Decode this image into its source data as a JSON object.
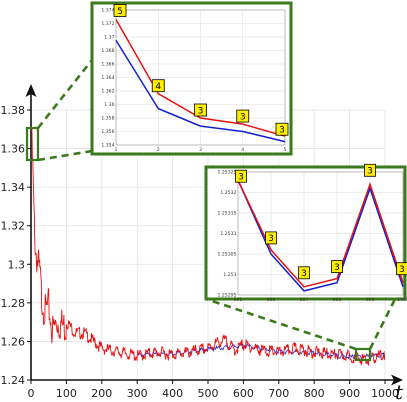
{
  "colors": {
    "frame": "#3b7a1a",
    "series_red": "#e41414",
    "series_blue": "#1020d0",
    "badge_fill": "#ffee00"
  },
  "chart_data": [
    {
      "type": "line",
      "x_axis_label": "t",
      "xlim": [
        0,
        1000
      ],
      "ylim": [
        1.24,
        1.38
      ],
      "xticks": [
        0,
        100,
        200,
        300,
        400,
        500,
        600,
        700,
        800,
        900,
        1000
      ],
      "xtick_labels": [
        "0",
        "100",
        "200",
        "300",
        "400",
        "500",
        "600",
        "700",
        "800",
        "900",
        "1000"
      ],
      "yticks": [
        1.24,
        1.26,
        1.28,
        1.3,
        1.32,
        1.34,
        1.36,
        1.38
      ],
      "ytick_labels": [
        "1.24",
        "1.26",
        "1.28",
        "1.3",
        "1.32",
        "1.34",
        "1.36",
        "1.38"
      ],
      "grid": true,
      "series": [
        {
          "color": "red",
          "x": [
            1,
            5,
            10,
            15,
            20,
            25,
            30,
            40,
            50,
            60,
            75,
            100,
            125,
            150,
            175,
            200,
            250,
            300,
            350,
            400,
            450,
            500,
            525,
            550,
            575,
            600,
            650,
            700,
            750,
            800,
            850,
            900,
            950,
            970,
            1000
          ],
          "y": [
            1.374,
            1.354,
            1.32,
            1.31,
            1.305,
            1.3,
            1.288,
            1.28,
            1.283,
            1.27,
            1.275,
            1.272,
            1.266,
            1.266,
            1.262,
            1.258,
            1.256,
            1.254,
            1.256,
            1.255,
            1.256,
            1.258,
            1.261,
            1.262,
            1.257,
            1.26,
            1.257,
            1.256,
            1.258,
            1.256,
            1.255,
            1.254,
            1.252,
            1.253,
            1.255
          ]
        },
        {
          "color": "blue",
          "x": [
            300,
            400,
            500,
            600,
            700,
            800,
            900,
            1000
          ],
          "y": [
            1.2535,
            1.2545,
            1.2565,
            1.2585,
            1.2555,
            1.2545,
            1.2525,
            1.2535
          ]
        }
      ],
      "zoom_regions": [
        {
          "x": [
            1,
            5
          ],
          "y": [
            1.354,
            1.374
          ]
        },
        {
          "x": [
            995,
            1000
          ],
          "y": [
            1.25295,
            1.25325
          ]
        }
      ]
    },
    {
      "type": "line",
      "xlim": [
        1,
        5
      ],
      "ylim": [
        1.354,
        1.374
      ],
      "xticks": [
        1,
        2,
        3,
        4,
        5
      ],
      "xtick_labels": [
        "1",
        "2",
        "3",
        "4",
        "5"
      ],
      "yticks": [
        1.354,
        1.356,
        1.358,
        1.36,
        1.362,
        1.364,
        1.366,
        1.368,
        1.37,
        1.372,
        1.374
      ],
      "ytick_labels": [
        "1.354",
        "1.356",
        "1.358",
        "1.36",
        "1.362",
        "1.364",
        "1.366",
        "1.368",
        "1.37",
        "1.372",
        "1.374"
      ],
      "grid": true,
      "series": [
        {
          "color": "red",
          "x": [
            1,
            2,
            3,
            4,
            5
          ],
          "y": [
            1.3726,
            1.3616,
            1.358,
            1.3571,
            1.3553
          ]
        },
        {
          "color": "blue",
          "x": [
            1,
            2,
            3,
            4,
            5
          ],
          "y": [
            1.3695,
            1.3594,
            1.3568,
            1.356,
            1.3545
          ]
        }
      ],
      "annotations": [
        {
          "x": 1,
          "y": 1.3726,
          "text": "5"
        },
        {
          "x": 2,
          "y": 1.3616,
          "text": "4"
        },
        {
          "x": 3,
          "y": 1.358,
          "text": "3"
        },
        {
          "x": 4,
          "y": 1.3571,
          "text": "3"
        },
        {
          "x": 5,
          "y": 1.3553,
          "text": "3"
        }
      ]
    },
    {
      "type": "line",
      "xlim": [
        995,
        1000
      ],
      "ylim": [
        1.25295,
        1.25325
      ],
      "xticks": [
        995,
        996,
        997,
        998,
        999,
        1000
      ],
      "xtick_labels": [
        "995",
        "996",
        "997",
        "998",
        "999",
        "1000"
      ],
      "yticks": [
        1.25295,
        1.253,
        1.25305,
        1.2531,
        1.25315,
        1.2532,
        1.25325
      ],
      "ytick_labels": [
        "1.25295",
        "1.253",
        "1.25305",
        "1.2531",
        "1.25315",
        "1.2532",
        "1.25325"
      ],
      "grid": true,
      "series": [
        {
          "color": "red",
          "x": [
            995,
            996,
            997,
            998,
            999,
            1000
          ],
          "y": [
            1.25323,
            1.25306,
            1.25297,
            1.25299,
            1.25322,
            1.25298
          ]
        },
        {
          "color": "blue",
          "x": [
            995,
            996,
            997,
            998,
            999,
            1000
          ],
          "y": [
            1.25323,
            1.25305,
            1.25296,
            1.25298,
            1.25321,
            1.25297
          ]
        }
      ],
      "annotations": [
        {
          "x": 995,
          "y": 1.25323,
          "text": "3"
        },
        {
          "x": 996,
          "y": 1.25306,
          "text": "3"
        },
        {
          "x": 997,
          "y": 1.25297,
          "text": "3"
        },
        {
          "x": 998,
          "y": 1.25299,
          "text": "3"
        },
        {
          "x": 999,
          "y": 1.25322,
          "text": "3"
        },
        {
          "x": 1000,
          "y": 1.25298,
          "text": "3"
        }
      ]
    }
  ]
}
